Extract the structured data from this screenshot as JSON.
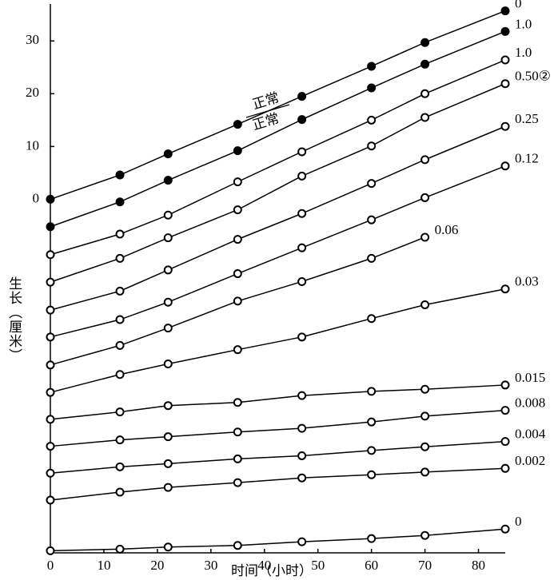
{
  "chart_data": {
    "type": "line",
    "xlabel": "时间（小时）",
    "ylabel": "生长（厘米）",
    "annotations": [
      "正常",
      "正常"
    ],
    "x": [
      0,
      13,
      22,
      35,
      47,
      60,
      70,
      85
    ],
    "xlim": [
      0,
      85
    ],
    "xticks": [
      0,
      10,
      20,
      30,
      40,
      50,
      60,
      70,
      80
    ],
    "ylim": [
      -67,
      37
    ],
    "yticks": [
      0,
      10,
      20,
      30
    ],
    "color": "#000000",
    "series": [
      {
        "name": "0",
        "filled": true,
        "values": [
          0,
          4.6,
          8.6,
          14.2,
          19.5,
          25.2,
          29.7,
          35.7
        ]
      },
      {
        "name": "1.0",
        "filled": true,
        "values": [
          -5.2,
          -0.5,
          3.6,
          9.2,
          15.1,
          21.1,
          25.6,
          31.8
        ]
      },
      {
        "name": "1.0",
        "filled": false,
        "values": [
          -10.5,
          -6.6,
          -3.0,
          3.3,
          9.0,
          15.0,
          20.0,
          26.4
        ]
      },
      {
        "name": "0.50②",
        "filled": false,
        "values": [
          -15.7,
          -11.2,
          -7.3,
          -2.0,
          4.4,
          10.1,
          15.5,
          21.9
        ]
      },
      {
        "name": "0.25",
        "filled": false,
        "values": [
          -21.0,
          -17.4,
          -13.4,
          -7.6,
          -2.7,
          3.0,
          7.5,
          13.8
        ]
      },
      {
        "name": "0.12",
        "filled": false,
        "values": [
          -26.1,
          -22.8,
          -19.5,
          -14.1,
          -9.2,
          -3.9,
          0.3,
          6.3
        ]
      },
      {
        "name": "0.06",
        "filled": false,
        "values": [
          -31.4,
          -27.7,
          -24.4,
          -19.3,
          -15.6,
          -11.2,
          -7.2,
          null
        ]
      },
      {
        "name": "0.03",
        "filled": false,
        "values": [
          -36.6,
          -33.2,
          -31.2,
          -28.5,
          -26.1,
          -22.6,
          -20.0,
          -17.0
        ]
      },
      {
        "name": "0.015",
        "filled": false,
        "values": [
          -41.7,
          -40.3,
          -39.1,
          -38.5,
          -37.2,
          -36.4,
          -36.0,
          -35.2
        ]
      },
      {
        "name": "0.008",
        "filled": false,
        "values": [
          -46.8,
          -45.6,
          -45.0,
          -44.1,
          -43.4,
          -42.2,
          -41.1,
          -40.0
        ]
      },
      {
        "name": "0.004",
        "filled": false,
        "values": [
          -51.9,
          -50.7,
          -50.1,
          -49.2,
          -48.6,
          -47.6,
          -46.9,
          -45.9
        ]
      },
      {
        "name": "0.002",
        "filled": false,
        "values": [
          -57.0,
          -55.5,
          -54.6,
          -53.7,
          -52.8,
          -52.2,
          -51.7,
          -51.0
        ]
      },
      {
        "name": "0",
        "filled": false,
        "values": [
          -66.6,
          -66.3,
          -65.9,
          -65.6,
          -64.9,
          -64.3,
          -63.7,
          -62.5
        ]
      }
    ]
  }
}
